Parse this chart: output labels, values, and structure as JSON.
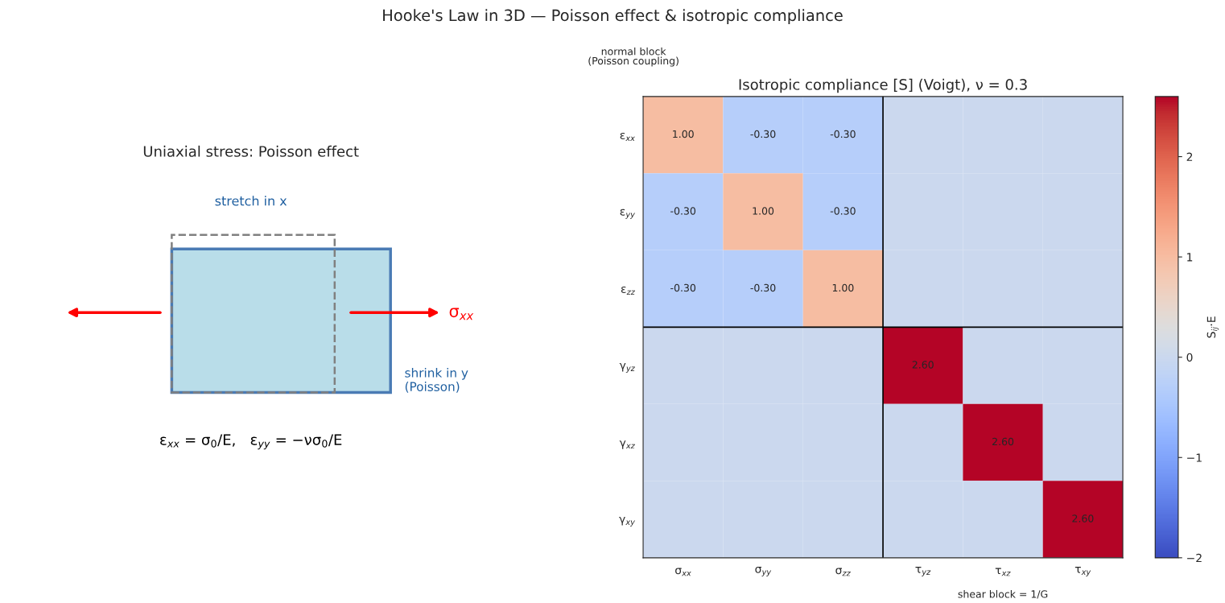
{
  "chart_data": [
    {
      "type": "other",
      "title": "Uniaxial stress: Poisson effect",
      "annotations": [
        "Hooke's Law in 3D — Poisson effect & isotropic compliance",
        "stretch in x",
        "shrink in y\n(Poisson)",
        "σ$_{xx}$",
        "ε$_{xx}$ = σ$_{0}$/E,   ε$_{yy}$ = −νσ$_{0}$/E"
      ]
    },
    {
      "type": "heatmap",
      "title": "Isotropic compliance [S] (Voigt), ν = 0.3",
      "clabel": "S$_{ij}$·E",
      "categories": [
        "σ$_{xx}$",
        "σ$_{yy}$",
        "σ$_{zz}$",
        "τ$_{yz}$",
        "τ$_{xz}$",
        "τ$_{xy}$"
      ],
      "y_categories": [
        "ε$_{xx}$",
        "ε$_{yy}$",
        "ε$_{zz}$",
        "γ$_{yz}$",
        "γ$_{xz}$",
        "γ$_{xy}$"
      ],
      "cells": [
        [
          1.0,
          -0.3,
          -0.3,
          0,
          0,
          0
        ],
        [
          -0.3,
          1.0,
          -0.3,
          0,
          0,
          0
        ],
        [
          -0.3,
          -0.3,
          1.0,
          0,
          0,
          0
        ],
        [
          0,
          0,
          0,
          2.6,
          0,
          0
        ],
        [
          0,
          0,
          0,
          0,
          2.6,
          0
        ],
        [
          0,
          0,
          0,
          0,
          0,
          2.6
        ]
      ],
      "cell_labels": [
        [
          "1.00",
          "-0.30",
          "-0.30",
          null,
          null,
          null
        ],
        [
          "-0.30",
          "1.00",
          "-0.30",
          null,
          null,
          null
        ],
        [
          "-0.30",
          "-0.30",
          "1.00",
          null,
          null,
          null
        ],
        [
          null,
          null,
          null,
          "2.60",
          null,
          null
        ],
        [
          null,
          null,
          null,
          null,
          "2.60",
          null
        ],
        [
          null,
          null,
          null,
          null,
          null,
          "2.60"
        ]
      ],
      "clim": [
        -2,
        2.6
      ],
      "cticks": [
        {
          "value": -2,
          "label": "−2"
        },
        {
          "value": -1,
          "label": "−1"
        },
        0,
        1,
        2
      ],
      "annotations": [
        "normal block\n(Poisson coupling)",
        "shear block = 1/G"
      ]
    }
  ]
}
